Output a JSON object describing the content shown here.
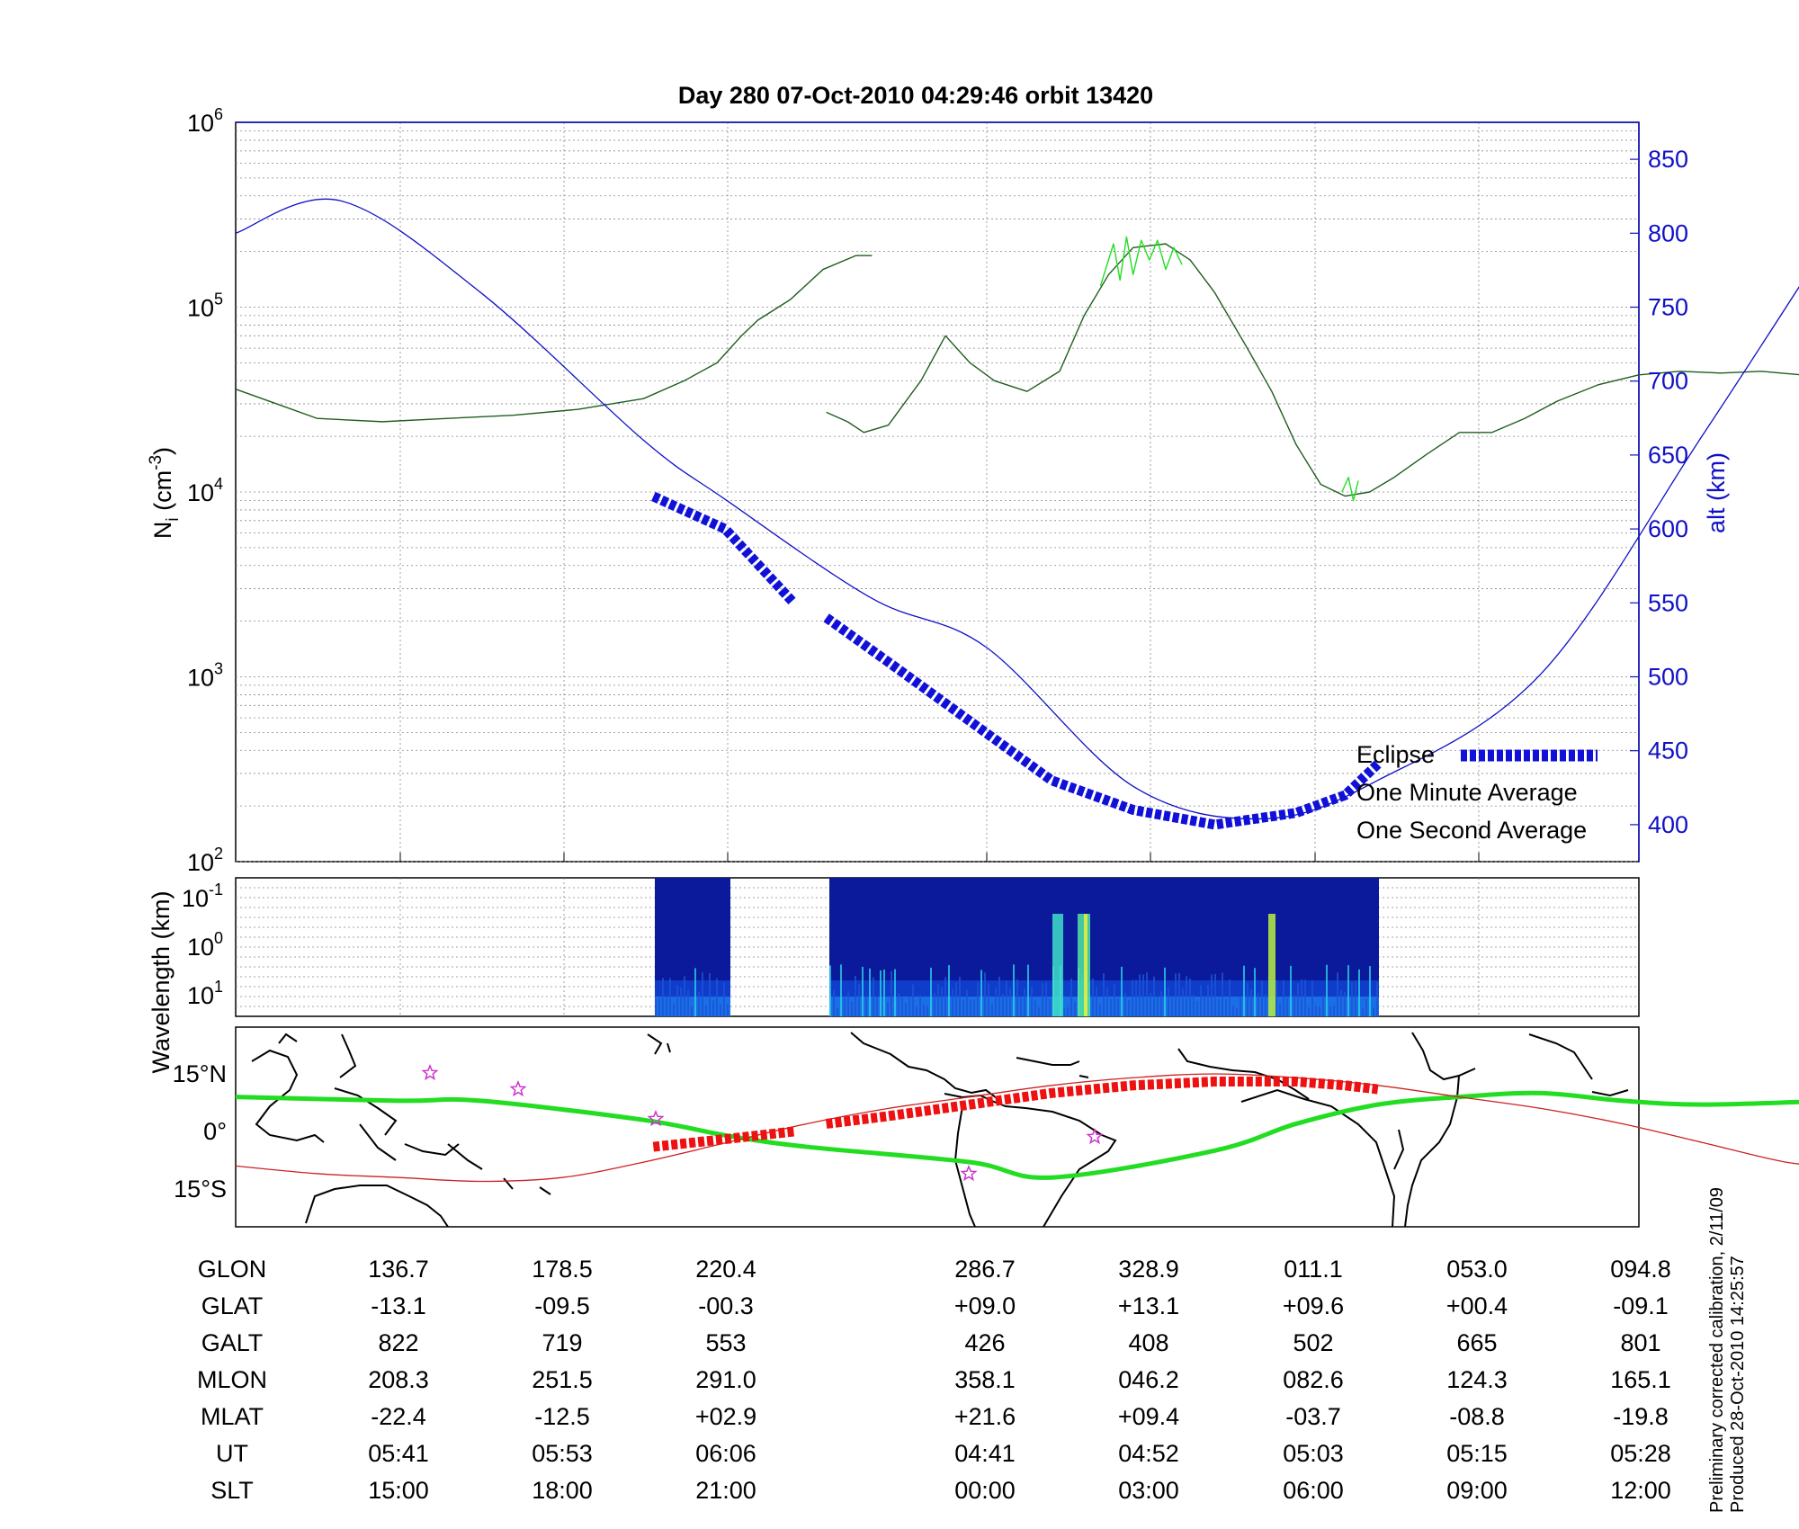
{
  "chart_data": [
    {
      "type": "line",
      "title": "Day 280  07-Oct-2010 04:29:46   orbit 13420",
      "ylabel": "N",
      "ylabel_sub": "i",
      "ylabel_unit": " (cm",
      "ylabel_exp": "-3",
      "ylabel_close": ")",
      "y_scale": "log",
      "ylim": [
        100,
        1000000
      ],
      "yticks": [
        {
          "base": "10",
          "exp": "2"
        },
        {
          "base": "10",
          "exp": "3"
        },
        {
          "base": "10",
          "exp": "4"
        },
        {
          "base": "10",
          "exp": "5"
        },
        {
          "base": "10",
          "exp": "6"
        }
      ],
      "y2label": "alt (km)",
      "y2lim": [
        375,
        875
      ],
      "y2ticks": [
        "400",
        "450",
        "500",
        "550",
        "600",
        "650",
        "700",
        "750",
        "800",
        "850"
      ],
      "x_index_range": [
        0,
        8.6
      ],
      "grid": true,
      "legend_position": "bottom-right",
      "legend": [
        {
          "label": "Eclipse",
          "color": "#1010d8"
        },
        {
          "label": "One Minute Average",
          "color": "#000000"
        },
        {
          "label": "One Second Average",
          "color": "#22dd22"
        }
      ],
      "series": [
        {
          "name": "One Minute Average",
          "color": "#1f5e1f",
          "segments": [
            [
              [
                0,
                36000
              ],
              [
                0.25,
                30000
              ],
              [
                0.5,
                25000
              ],
              [
                0.9,
                24000
              ],
              [
                1.3,
                25000
              ],
              [
                1.7,
                26000
              ],
              [
                2.1,
                28000
              ],
              [
                2.5,
                32000
              ],
              [
                2.75,
                40000
              ],
              [
                2.95,
                50000
              ],
              [
                3.1,
                70000
              ],
              [
                3.2,
                85000
              ],
              [
                3.4,
                110000
              ],
              [
                3.6,
                160000
              ],
              [
                3.8,
                190000
              ],
              [
                3.9,
                190000
              ]
            ],
            [
              [
                3.9,
                190000
              ]
            ],
            [
              [
                3.62,
                27000
              ],
              [
                3.75,
                24000
              ],
              [
                3.85,
                21000
              ],
              [
                4.0,
                23000
              ],
              [
                4.2,
                40000
              ],
              [
                4.35,
                70000
              ],
              [
                4.5,
                50000
              ],
              [
                4.65,
                40000
              ],
              [
                4.85,
                35000
              ],
              [
                5.05,
                45000
              ],
              [
                5.2,
                90000
              ],
              [
                5.35,
                150000
              ],
              [
                5.5,
                210000
              ],
              [
                5.7,
                220000
              ],
              [
                5.85,
                180000
              ],
              [
                6.0,
                120000
              ],
              [
                6.2,
                60000
              ],
              [
                6.35,
                35000
              ],
              [
                6.5,
                18000
              ],
              [
                6.65,
                11000
              ],
              [
                6.8,
                9500
              ],
              [
                6.95,
                10000
              ],
              [
                7.1,
                12000
              ],
              [
                7.3,
                16000
              ],
              [
                7.5,
                21000
              ],
              [
                7.7,
                21000
              ],
              [
                7.9,
                25000
              ],
              [
                8.1,
                31000
              ],
              [
                8.35,
                38000
              ],
              [
                8.6,
                43000
              ],
              [
                8.85,
                45000
              ],
              [
                9.1,
                44000
              ],
              [
                9.35,
                45000
              ],
              [
                9.6,
                43000
              ],
              [
                9.8,
                38000
              ]
            ]
          ]
        },
        {
          "name": "One Second Average",
          "color": "#22dd22",
          "segments": [
            [
              [
                5.3,
                130000
              ],
              [
                5.38,
                220000
              ],
              [
                5.42,
                140000
              ],
              [
                5.46,
                240000
              ],
              [
                5.5,
                150000
              ],
              [
                5.55,
                230000
              ],
              [
                5.6,
                180000
              ],
              [
                5.65,
                230000
              ],
              [
                5.7,
                160000
              ],
              [
                5.75,
                210000
              ],
              [
                5.8,
                170000
              ]
            ],
            [
              [
                6.78,
                10000
              ],
              [
                6.82,
                12000
              ],
              [
                6.85,
                9000
              ],
              [
                6.88,
                11500
              ]
            ]
          ]
        },
        {
          "name": "alt",
          "axis": "right",
          "color": "#1010c8",
          "x": [
            0,
            0.64,
            1.5,
            2.5,
            3.0,
            3.9,
            4.6,
            5.5,
            6.3,
            7.0,
            8.0,
            9.0,
            9.8
          ],
          "y": [
            800,
            822,
            760,
            660,
            620,
            553,
            520,
            426,
            404,
            430,
            502,
            665,
            801
          ]
        },
        {
          "name": "Eclipse",
          "axis": "right",
          "color": "#1010d8",
          "segments": [
            [
              [
                2.56,
                622
              ],
              [
                3.0,
                600
              ],
              [
                3.42,
                550
              ]
            ],
            [
              [
                3.62,
                540
              ],
              [
                4.0,
                510
              ],
              [
                4.5,
                470
              ],
              [
                5.0,
                430
              ],
              [
                5.5,
                410
              ],
              [
                6.0,
                400
              ],
              [
                6.5,
                408
              ],
              [
                6.8,
                420
              ],
              [
                7.0,
                441
              ]
            ]
          ]
        }
      ]
    },
    {
      "type": "heatmap",
      "ylabel": "Wavelength (km)",
      "yticks": [
        {
          "base": "10",
          "exp": "-1"
        },
        {
          "base": "10",
          "exp": "0"
        },
        {
          "base": "10",
          "exp": "1"
        }
      ]
    },
    {
      "type": "line",
      "yticks": [
        "15°N",
        "0°",
        "15°S"
      ],
      "series": [
        {
          "name": "magnetic equator",
          "color": "#22dd22",
          "x": [
            0,
            1,
            1.5,
            2.5,
            3.0,
            3.5,
            4.5,
            5.0,
            6.0,
            6.5,
            7.0,
            7.5,
            8.0,
            8.5,
            9.0,
            9.8
          ],
          "y": [
            9,
            8,
            8,
            3,
            -1,
            -4,
            -8,
            -12,
            -5,
            2,
            7,
            9,
            10,
            8,
            7,
            8
          ]
        },
        {
          "name": "orbit track",
          "color": "#cc2222",
          "x": [
            0,
            0.5,
            1.0,
            1.5,
            2.0,
            2.5,
            3.0,
            3.5,
            4.0,
            4.5,
            5.0,
            5.5,
            6.0,
            6.5,
            7.0,
            7.5,
            8.0,
            8.5,
            9.0,
            9.5,
            9.8
          ],
          "y": [
            -9,
            -11,
            -12,
            -13,
            -12,
            -8,
            -3,
            2,
            6,
            9,
            12,
            14,
            15,
            14,
            12,
            9,
            6,
            2,
            -3,
            -8,
            -9
          ]
        },
        {
          "name": "eclipse track",
          "color": "#ee1111",
          "segments": [
            [
              [
                2.56,
                -4
              ],
              [
                3.0,
                -2
              ],
              [
                3.42,
                0
              ]
            ],
            [
              [
                3.62,
                2
              ],
              [
                4.0,
                4
              ],
              [
                4.5,
                7
              ],
              [
                5.0,
                10
              ],
              [
                5.5,
                12
              ],
              [
                6.0,
                13
              ],
              [
                6.5,
                13
              ],
              [
                6.8,
                12
              ],
              [
                7.0,
                11
              ]
            ]
          ]
        }
      ]
    }
  ],
  "table": {
    "rows": [
      {
        "label": "GLON",
        "values": [
          "136.7",
          "178.5",
          "220.4",
          "286.7",
          "328.9",
          "011.1",
          "053.0",
          "094.8"
        ]
      },
      {
        "label": "GLAT",
        "values": [
          "-13.1",
          "-09.5",
          "-00.3",
          "+09.0",
          "+13.1",
          "+09.6",
          "+00.4",
          "-09.1"
        ]
      },
      {
        "label": "GALT",
        "values": [
          "822",
          "719",
          "553",
          "426",
          "408",
          "502",
          "665",
          "801"
        ]
      },
      {
        "label": "MLON",
        "values": [
          "208.3",
          "251.5",
          "291.0",
          "358.1",
          "046.2",
          "082.6",
          "124.3",
          "165.1"
        ]
      },
      {
        "label": "MLAT",
        "values": [
          "-22.4",
          "-12.5",
          "+02.9",
          "+21.6",
          "+09.4",
          "-03.7",
          "-08.8",
          "-19.8"
        ]
      },
      {
        "label": "UT",
        "values": [
          "05:41",
          "05:53",
          "06:06",
          "04:41",
          "04:52",
          "05:03",
          "05:15",
          "05:28"
        ]
      },
      {
        "label": "SLT",
        "values": [
          "15:00",
          "18:00",
          "21:00",
          "00:00",
          "03:00",
          "06:00",
          "09:00",
          "12:00"
        ]
      }
    ]
  },
  "footnote": {
    "line1": "Preliminary corrected calibration, 2/11/09",
    "line2": "Produced 28-Oct-2010 14:25:57"
  }
}
